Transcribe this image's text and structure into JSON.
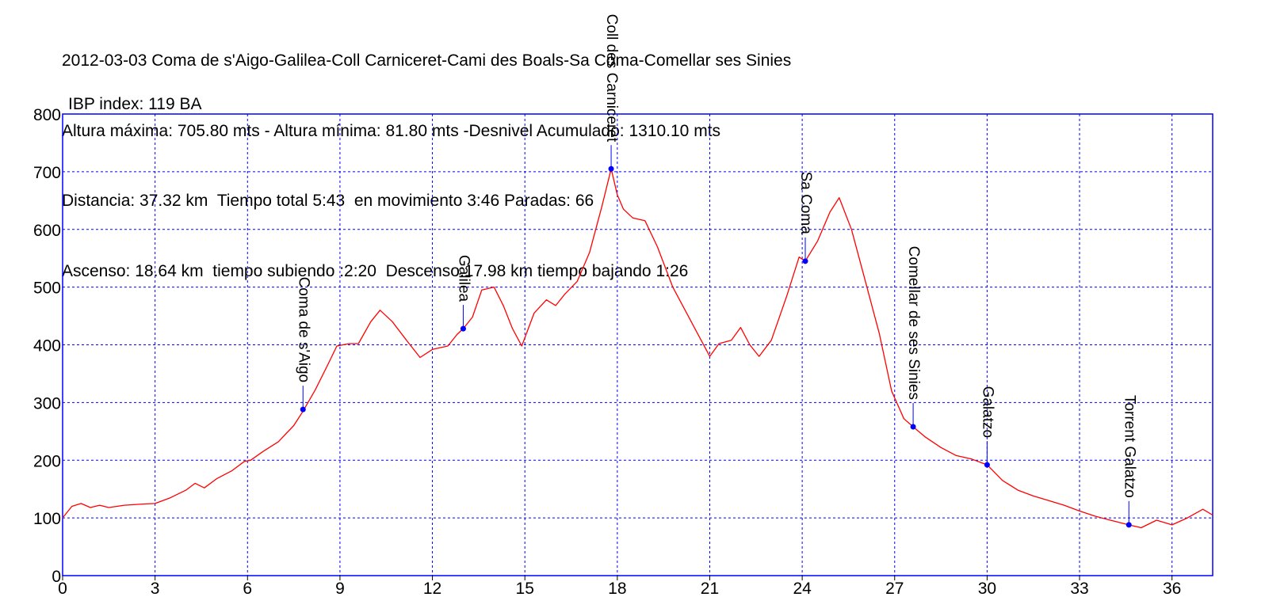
{
  "header": {
    "line1": "2012-03-03 Coma de s'Aigo-Galilea-Coll Carniceret-Cami des Boals-Sa Coma-Comellar ses Sinies",
    "line2": "Altura máxima: 705.80 mts - Altura mínima: 81.80 mts -Desnivel Acumulado: 1310.10 mts",
    "line3": "Distancia: 37.32 km  Tiempo total 5:43  en movimiento 3:46 Paradas: 66",
    "line4": "Ascenso: 18.64 km  tiempo subiendo :2:20  Descenso:17.98 km tiempo bajando 1:26",
    "line5": "IBP index: 119 BA"
  },
  "colors": {
    "frame": "#0000ff",
    "grid": "#0000ff",
    "profile": "#ff0000",
    "waypoint": "#0000ff"
  },
  "chart_data": {
    "type": "line",
    "title": "",
    "xlabel": "",
    "ylabel": "",
    "xlim": [
      0,
      37.32
    ],
    "ylim": [
      0,
      800
    ],
    "grid": true,
    "x_ticks": [
      0,
      3,
      6,
      9,
      12,
      15,
      18,
      21,
      24,
      27,
      30,
      33,
      36
    ],
    "y_ticks": [
      0,
      100,
      200,
      300,
      400,
      500,
      600,
      700,
      800
    ],
    "series": [
      {
        "color": "#ff0000",
        "points": [
          [
            0,
            100
          ],
          [
            0.3,
            120
          ],
          [
            0.6,
            125
          ],
          [
            0.9,
            118
          ],
          [
            1.2,
            122
          ],
          [
            1.5,
            118
          ],
          [
            2,
            122
          ],
          [
            2.6,
            124
          ],
          [
            3,
            125
          ],
          [
            3.5,
            135
          ],
          [
            4,
            148
          ],
          [
            4.3,
            160
          ],
          [
            4.6,
            152
          ],
          [
            5,
            168
          ],
          [
            5.5,
            182
          ],
          [
            5.9,
            198
          ],
          [
            6.1,
            200
          ],
          [
            6.5,
            215
          ],
          [
            7,
            232
          ],
          [
            7.5,
            260
          ],
          [
            7.8,
            285
          ],
          [
            8.2,
            322
          ],
          [
            8.6,
            365
          ],
          [
            8.9,
            398
          ],
          [
            9.3,
            402
          ],
          [
            9.6,
            402
          ],
          [
            10,
            440
          ],
          [
            10.3,
            460
          ],
          [
            10.7,
            440
          ],
          [
            11.2,
            405
          ],
          [
            11.6,
            378
          ],
          [
            12,
            392
          ],
          [
            12.5,
            398
          ],
          [
            12.8,
            418
          ],
          [
            13,
            428
          ],
          [
            13.3,
            448
          ],
          [
            13.6,
            495
          ],
          [
            14,
            500
          ],
          [
            14.3,
            468
          ],
          [
            14.6,
            428
          ],
          [
            14.9,
            398
          ],
          [
            15.3,
            455
          ],
          [
            15.7,
            478
          ],
          [
            16,
            468
          ],
          [
            16.3,
            488
          ],
          [
            16.7,
            510
          ],
          [
            17.1,
            560
          ],
          [
            17.5,
            640
          ],
          [
            17.8,
            705
          ],
          [
            18,
            660
          ],
          [
            18.2,
            635
          ],
          [
            18.5,
            620
          ],
          [
            18.9,
            615
          ],
          [
            19.3,
            570
          ],
          [
            19.8,
            500
          ],
          [
            20.2,
            460
          ],
          [
            20.6,
            420
          ],
          [
            21,
            380
          ],
          [
            21.3,
            402
          ],
          [
            21.7,
            408
          ],
          [
            22,
            430
          ],
          [
            22.3,
            400
          ],
          [
            22.6,
            380
          ],
          [
            23,
            408
          ],
          [
            23.5,
            485
          ],
          [
            23.9,
            552
          ],
          [
            24.1,
            545
          ],
          [
            24.5,
            580
          ],
          [
            24.9,
            630
          ],
          [
            25.2,
            655
          ],
          [
            25.6,
            600
          ],
          [
            26,
            520
          ],
          [
            26.5,
            420
          ],
          [
            26.9,
            320
          ],
          [
            27.3,
            272
          ],
          [
            27.6,
            258
          ],
          [
            28,
            240
          ],
          [
            28.5,
            222
          ],
          [
            29,
            208
          ],
          [
            29.5,
            202
          ],
          [
            30,
            192
          ],
          [
            30.5,
            165
          ],
          [
            31,
            148
          ],
          [
            31.5,
            138
          ],
          [
            32,
            130
          ],
          [
            32.5,
            122
          ],
          [
            33,
            112
          ],
          [
            33.5,
            103
          ],
          [
            34,
            96
          ],
          [
            34.6,
            88
          ],
          [
            35,
            83
          ],
          [
            35.5,
            96
          ],
          [
            36,
            88
          ],
          [
            36.5,
            100
          ],
          [
            37,
            115
          ],
          [
            37.32,
            105
          ]
        ]
      }
    ],
    "waypoints": [
      {
        "name": "Coma de s'Aigo",
        "x": 7.8,
        "y": 288
      },
      {
        "name": "Galilea",
        "x": 13.0,
        "y": 428
      },
      {
        "name": "Coll des Carniceret",
        "x": 17.8,
        "y": 705
      },
      {
        "name": "Sa Coma",
        "x": 24.1,
        "y": 545
      },
      {
        "name": "Comellar de ses Sinies",
        "x": 27.6,
        "y": 258
      },
      {
        "name": "Galatzo",
        "x": 30.0,
        "y": 192
      },
      {
        "name": "Torrent Galatzo",
        "x": 34.6,
        "y": 88
      }
    ]
  }
}
